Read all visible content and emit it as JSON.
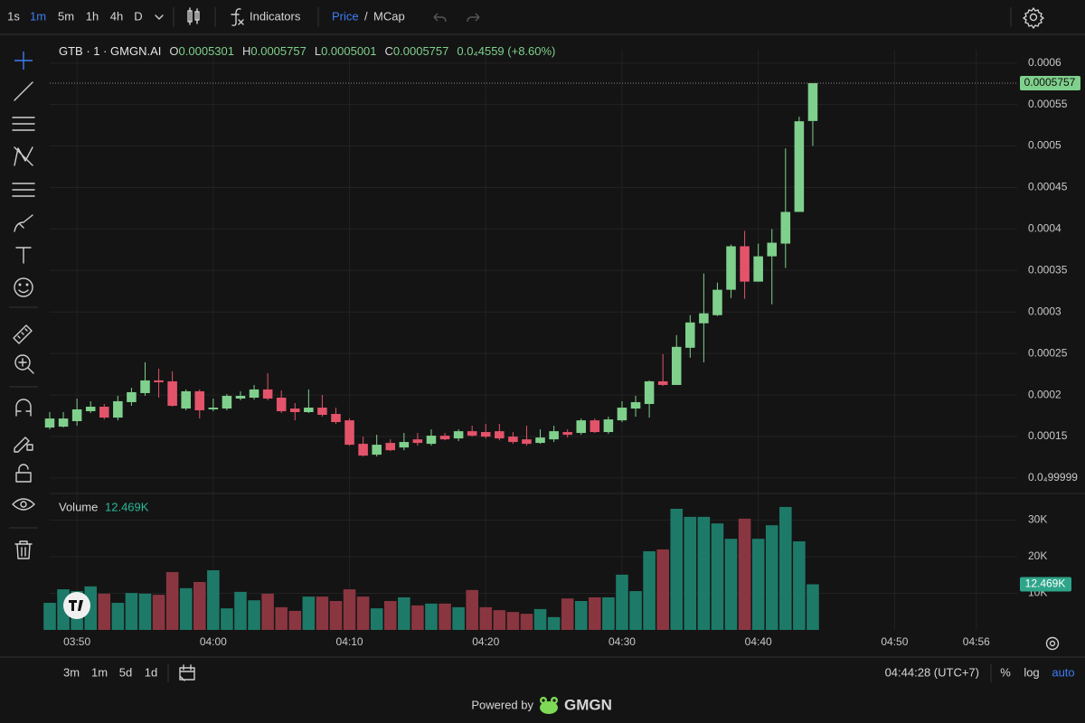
{
  "toolbar": {
    "intervals": [
      "1s",
      "1m",
      "5m",
      "1h",
      "4h",
      "D"
    ],
    "indicators": "Indicators",
    "price": "Price",
    "separator": "/",
    "mcap": "MCap"
  },
  "legend": {
    "symbol": "GTB · 1 · GMGN.AI",
    "prefixes": [
      "O",
      "H",
      "L",
      "C"
    ],
    "change": "0.0₄4559 (+8.60%)"
  },
  "bottom_bar": {
    "ranges": [
      "3m",
      "1m",
      "5d",
      "1d"
    ],
    "clock": "04:44:28 (UTC+7)",
    "percent": "%",
    "log": "log",
    "auto": "auto"
  },
  "footer": {
    "powered_by": "Powered by",
    "brand": "GMGN"
  },
  "chart_data": {
    "type": "candlestick",
    "x": [
      "03:48",
      "03:49",
      "03:50",
      "03:51",
      "03:52",
      "03:53",
      "03:54",
      "03:55",
      "03:56",
      "03:57",
      "03:58",
      "03:59",
      "04:00",
      "04:01",
      "04:02",
      "04:03",
      "04:04",
      "04:05",
      "04:06",
      "04:07",
      "04:08",
      "04:09",
      "04:10",
      "04:11",
      "04:12",
      "04:13",
      "04:14",
      "04:15",
      "04:16",
      "04:17",
      "04:18",
      "04:19",
      "04:20",
      "04:21",
      "04:22",
      "04:23",
      "04:24",
      "04:25",
      "04:26",
      "04:27",
      "04:28",
      "04:29",
      "04:30",
      "04:31",
      "04:32",
      "04:33",
      "04:34",
      "04:35",
      "04:36",
      "04:37",
      "04:38",
      "04:39",
      "04:40",
      "04:41",
      "04:42",
      "04:43",
      "04:44"
    ],
    "open": [
      0.0001608,
      0.0001619,
      0.0001685,
      0.0001805,
      0.0001859,
      0.0001728,
      0.0001914,
      0.0002023,
      0.0002176,
      0.0002165,
      0.0001837,
      0.0002045,
      0.0001827,
      0.0001837,
      0.0001957,
      0.0001968,
      0.0002067,
      0.0001968,
      0.0001837,
      0.0001794,
      0.0001848,
      0.0001772,
      0.0001695,
      0.0001412,
      0.0001281,
      0.0001423,
      0.0001368,
      0.0001466,
      0.0001412,
      0.000151,
      0.0001477,
      0.0001564,
      0.0001554,
      0.0001564,
      0.0001499,
      0.0001466,
      0.0001423,
      0.0001466,
      0.0001554,
      0.0001543,
      0.0001695,
      0.0001554,
      0.0001695,
      0.0001837,
      0.0001892,
      0.0002165,
      0.0002121,
      0.0002569,
      0.0002864,
      0.0002962,
      0.0003268,
      0.0003792,
      0.0003366,
      0.0003671,
      0.0003824,
      0.0004206,
      0.0005301
    ],
    "high": [
      0.0001794,
      0.0001794,
      0.0001957,
      0.0001925,
      0.0001892,
      0.000199,
      0.0002088,
      0.0002394,
      0.0002318,
      0.0002285,
      0.0002067,
      0.0002067,
      0.0001957,
      0.0002012,
      0.0002045,
      0.0002121,
      0.0002263,
      0.0002056,
      0.0001903,
      0.0002067,
      0.0002001,
      0.0001848,
      0.0001717,
      0.0001499,
      0.0001521,
      0.0001466,
      0.0001543,
      0.0001543,
      0.0001586,
      0.0001543,
      0.0001586,
      0.000163,
      0.0001652,
      0.0001652,
      0.0001554,
      0.000163,
      0.0001586,
      0.000163,
      0.0001586,
      0.0001717,
      0.0001717,
      0.0001739,
      0.0001925,
      0.000199,
      0.0002176,
      0.0002492,
      0.0002722,
      0.0002962,
      0.0003464,
      0.0003355,
      0.0003813,
      0.0003977,
      0.0003824,
      0.0003999,
      0.0004971,
      0.0005353,
      0.0005757
    ],
    "low": [
      0.0001586,
      0.0001608,
      0.000163,
      0.0001783,
      0.0001706,
      0.0001695,
      0.000187,
      0.000199,
      0.0001968,
      0.0001859,
      0.0001816,
      0.0001717,
      0.0001805,
      0.0001816,
      0.0001936,
      0.0001946,
      0.0001936,
      0.0001783,
      0.0001695,
      0.0001783,
      0.0001739,
      0.0001652,
      0.000139,
      0.0001259,
      0.0001259,
      0.0001324,
      0.0001335,
      0.000139,
      0.000139,
      0.0001455,
      0.0001444,
      0.0001499,
      0.0001477,
      0.0001455,
      0.0001412,
      0.000139,
      0.0001412,
      0.0001434,
      0.0001488,
      0.0001521,
      0.0001543,
      0.0001532,
      0.0001674,
      0.0001739,
      0.0001728,
      0.000211,
      0.0002121,
      0.0002449,
      0.0002394,
      0.0002951,
      0.0003169,
      0.0003159,
      0.0003366,
      0.0003093,
      0.000353,
      0.0004206,
      0.0005001
    ],
    "close": [
      0.0001717,
      0.0001717,
      0.0001827,
      0.0001859,
      0.0001728,
      0.0001925,
      0.0002034,
      0.0002176,
      0.0002154,
      0.000187,
      0.0002045,
      0.0001816,
      0.0001848,
      0.000199,
      0.000199,
      0.0002067,
      0.0001957,
      0.0001805,
      0.0001794,
      0.0001848,
      0.0001761,
      0.0001674,
      0.0001401,
      0.000127,
      0.0001401,
      0.0001335,
      0.0001434,
      0.0001423,
      0.000151,
      0.0001466,
      0.0001564,
      0.000151,
      0.0001499,
      0.0001477,
      0.0001434,
      0.0001412,
      0.0001488,
      0.0001564,
      0.0001521,
      0.0001695,
      0.0001554,
      0.0001706,
      0.0001848,
      0.0001914,
      0.0002165,
      0.0002121,
      0.000258,
      0.0002874,
      0.0002984,
      0.0003268,
      0.0003792,
      0.0003366,
      0.0003671,
      0.0003835,
      0.0004206,
      0.0005298,
      0.0005757
    ],
    "up_color": "#7fd08c",
    "down_color": "#e3536a",
    "xlim": [
      "03:48",
      "04:59"
    ],
    "xticks": [
      "03:50",
      "04:00",
      "04:10",
      "04:20",
      "04:30",
      "04:40",
      "04:50",
      "04:56"
    ],
    "ylim": [
      8.25e-05,
      0.000616
    ],
    "yticks": [
      0.0006,
      0.00055,
      0.0005,
      0.00045,
      0.0004,
      0.00035,
      0.0003,
      0.00025,
      0.0002,
      0.00015,
      {
        "value": 9.9999e-05,
        "label": "0.0₄99999"
      }
    ],
    "grid": true,
    "volume": {
      "name": "Volume",
      "values": [
        7400,
        11100,
        10600,
        11900,
        9900,
        7400,
        10100,
        9900,
        9600,
        15800,
        11400,
        13100,
        16300,
        5900,
        10400,
        8100,
        9900,
        6200,
        5200,
        9100,
        9100,
        7900,
        11100,
        9100,
        5900,
        7900,
        8900,
        6700,
        7200,
        7200,
        6200,
        10900,
        6200,
        5400,
        4900,
        4400,
        5700,
        3500,
        8600,
        7900,
        8900,
        8900,
        15100,
        10600,
        21500,
        22000,
        33100,
        30900,
        30900,
        29100,
        24900,
        30400,
        24900,
        28600,
        33600,
        24200,
        12469
      ],
      "current_label": "12.469K",
      "up_color": "#1e7a68",
      "down_color": "#8a3640"
    },
    "y2lim": [
      0,
      36800
    ],
    "y2ticks": [
      {
        "value": 30000,
        "label": "30K"
      },
      {
        "value": 20000,
        "label": "20K"
      },
      {
        "value": 10000,
        "label": "10K"
      }
    ]
  }
}
